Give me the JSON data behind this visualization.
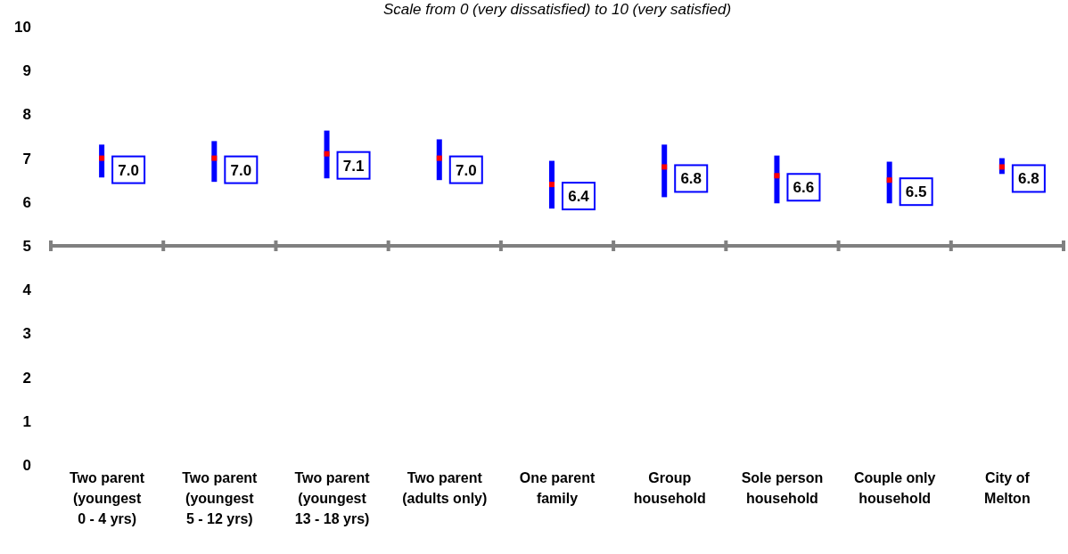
{
  "chart_data": {
    "type": "scatter",
    "subtitle": "Scale from 0 (very dissatisfied) to 10 (very satisfied)",
    "categories": [
      "Two parent\n(youngest\n0 - 4 yrs)",
      "Two parent\n(youngest\n5 - 12 yrs)",
      "Two parent\n(youngest\n13 - 18 yrs)",
      "Two parent\n(adults only)",
      "One parent\nfamily",
      "Group\nhousehold",
      "Sole person\nhousehold",
      "Couple only\nhousehold",
      "City of\nMelton"
    ],
    "values": [
      7.0,
      7.0,
      7.1,
      7.0,
      6.4,
      6.8,
      6.6,
      6.5,
      6.8
    ],
    "value_labels": [
      "7.0",
      "7.0",
      "7.1",
      "7.0",
      "6.4",
      "6.8",
      "6.6",
      "6.5",
      "6.8"
    ],
    "errors": [
      [
        6.56,
        7.31
      ],
      [
        6.46,
        7.39
      ],
      [
        6.54,
        7.63
      ],
      [
        6.5,
        7.43
      ],
      [
        5.85,
        6.94
      ],
      [
        6.11,
        7.31
      ],
      [
        5.97,
        7.06
      ],
      [
        5.97,
        6.92
      ],
      [
        6.64,
        7.0
      ]
    ],
    "color": "#ff0000",
    "marker": "square",
    "ylim": [
      0,
      10
    ],
    "yticks": [
      0,
      1,
      2,
      3,
      4,
      5,
      6,
      7,
      8,
      9,
      10
    ],
    "ref_lines": [
      {
        "axis": "y",
        "value": 5,
        "color": "#808080"
      }
    ]
  }
}
